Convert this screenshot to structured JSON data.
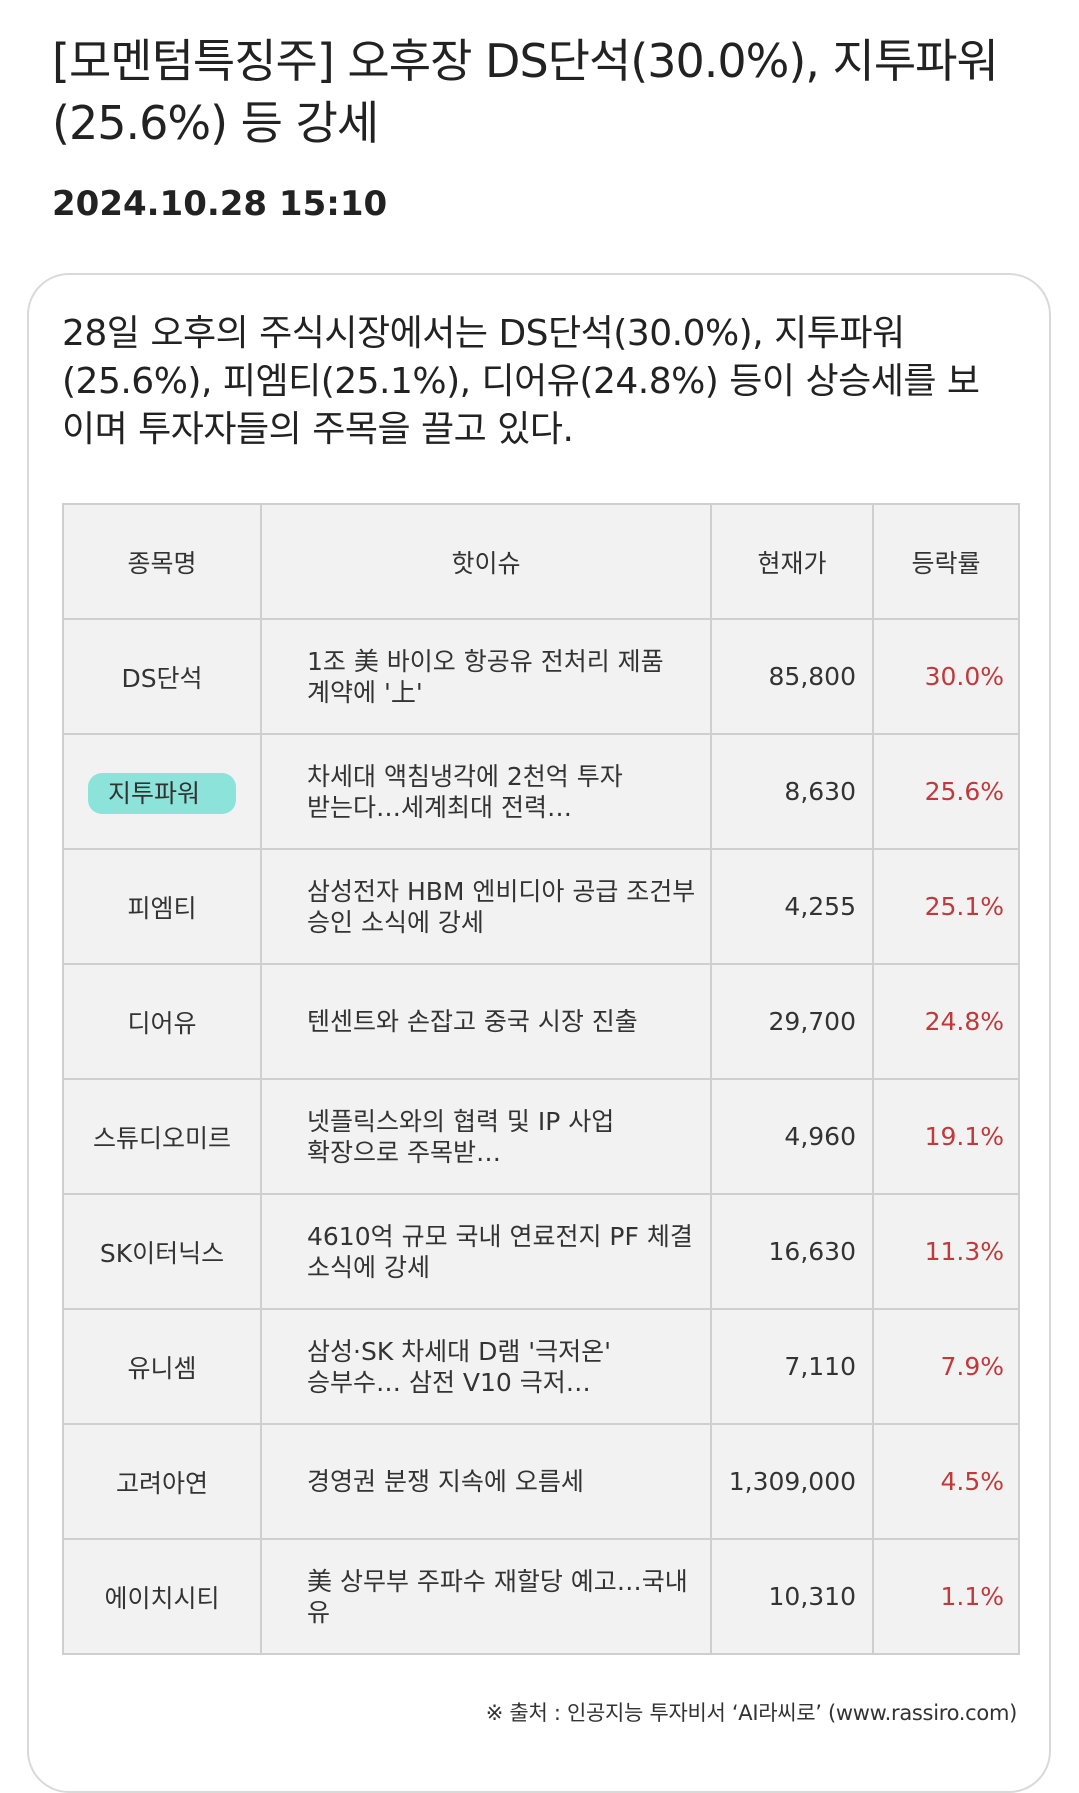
{
  "article": {
    "headline": "[모멘텀특징주] 오후장 DS단석(30.0%), 지투파워(25.6%) 등 강세",
    "datetime": "2024.10.28  15:10",
    "summary": "28일 오후의 주식시장에서는 DS단석(30.0%), 지투파워(25.6%), 피엠티(25.1%), 디어유(24.8%) 등이 상승세를 보이며 투자자들의 주목을 끌고 있다."
  },
  "table": {
    "headers": {
      "name": "종목명",
      "issue": "핫이슈",
      "price": "현재가",
      "change": "등락률"
    },
    "rows": [
      {
        "name": "DS단석",
        "issue": "1조 美 바이오 항공유 전처리 제품 계약에 '上'",
        "price": "85,800",
        "change": "30.0%"
      },
      {
        "name": "지투파워",
        "issue": "차세대 액침냉각에 2천억 투자 받는다…세계최대 전력…",
        "price": "8,630",
        "change": "25.6%"
      },
      {
        "name": "피엠티",
        "issue": "삼성전자 HBM 엔비디아 공급 조건부 승인 소식에 강세",
        "price": "4,255",
        "change": "25.1%"
      },
      {
        "name": "디어유",
        "issue": "텐센트와 손잡고 중국 시장 진출",
        "price": "29,700",
        "change": "24.8%"
      },
      {
        "name": "스튜디오미르",
        "issue": "넷플릭스와의 협력 및 IP 사업 확장으로 주목받…",
        "price": "4,960",
        "change": "19.1%"
      },
      {
        "name": "SK이터닉스",
        "issue": "4610억 규모 국내 연료전지 PF 체결 소식에 강세",
        "price": "16,630",
        "change": "11.3%"
      },
      {
        "name": "유니셈",
        "issue": "삼성·SK 차세대 D램 '극저온' 승부수… 삼전 V10 극저…",
        "price": "7,110",
        "change": "7.9%"
      },
      {
        "name": "고려아연",
        "issue": "경영권 분쟁 지속에 오름세",
        "price": "1,309,000",
        "change": "4.5%"
      },
      {
        "name": "에이치시티",
        "issue": "美 상무부 주파수 재할당 예고…국내 유",
        "price": "10,310",
        "change": "1.1%"
      }
    ]
  },
  "source": "※ 출처 : 인공지능 투자비서 ‘AI라씨로’ (www.rassiro.com)",
  "colors": {
    "change_text": "#c0393b",
    "highlight": "#8be3d9",
    "cell_bg": "#f2f2f2"
  }
}
